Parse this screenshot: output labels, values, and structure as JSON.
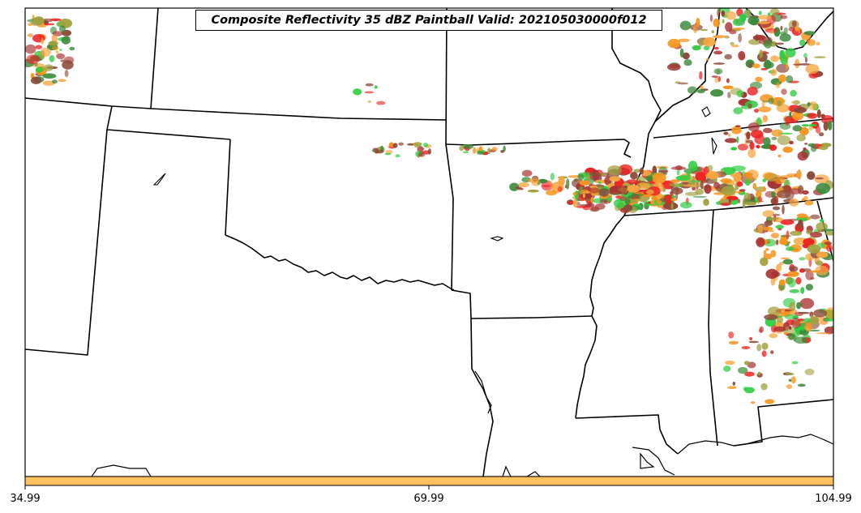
{
  "title": "Composite Reflectivity 35 dBZ Paintball Valid: 202105030000f012",
  "colorbar": {
    "color": "#FFC060",
    "ticks": [
      "34.99",
      "69.99",
      "104.99"
    ]
  },
  "colors": {
    "paint_orange": "#F7941D",
    "paint_light_orange": "#F5A640",
    "paint_red": "#EE2222",
    "paint_dark_red": "#A83232",
    "paint_green": "#2ECC40",
    "paint_dark_green": "#3C8A3C",
    "paint_olive": "#A0A040",
    "paint_brown": "#8B4A3A"
  }
}
